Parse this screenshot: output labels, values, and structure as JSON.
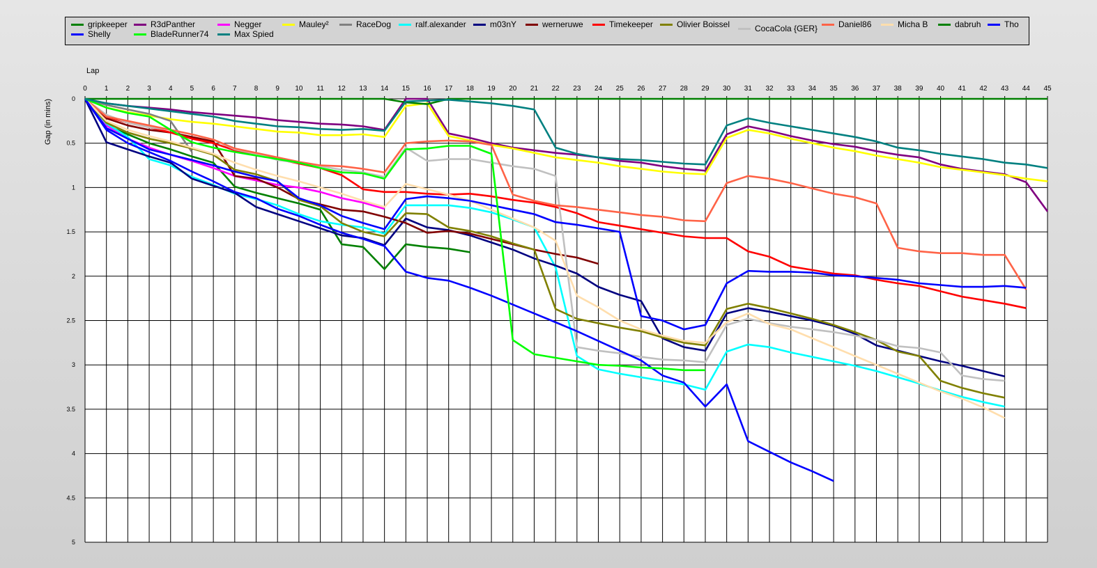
{
  "chart_data": {
    "type": "line",
    "title": "",
    "xlabel": "Lap",
    "ylabel": "Gap (in mins)",
    "xlim": [
      0,
      45
    ],
    "ylim": [
      0,
      5
    ],
    "y_inverted": true,
    "x_axis_position": "top",
    "grid": true,
    "legend_placement": "top",
    "x_ticks": [
      0,
      1,
      2,
      3,
      4,
      5,
      6,
      7,
      8,
      9,
      10,
      11,
      12,
      13,
      14,
      15,
      16,
      17,
      18,
      19,
      20,
      21,
      22,
      23,
      24,
      25,
      26,
      27,
      28,
      29,
      30,
      31,
      32,
      33,
      34,
      35,
      36,
      37,
      38,
      39,
      40,
      41,
      42,
      43,
      44,
      45
    ],
    "y_ticks": [
      "0",
      "0.5",
      "1",
      "1.5",
      "2",
      "2.5",
      "3",
      "3.5",
      "4",
      "4.5",
      "5"
    ],
    "series": [
      {
        "name": "gripkeeper",
        "color": "#008000",
        "values": [
          0,
          0.3,
          0.4,
          0.5,
          0.57,
          0.65,
          0.72,
          0.99,
          1.06,
          1.12,
          1.18,
          1.25,
          1.64,
          1.67,
          1.92,
          1.64,
          1.67,
          1.69,
          1.73
        ]
      },
      {
        "name": "R3dPanther",
        "color": "#800080",
        "values": [
          0,
          0.05,
          0.08,
          0.1,
          0.12,
          0.15,
          0.17,
          0.19,
          0.21,
          0.24,
          0.26,
          0.28,
          0.29,
          0.31,
          0.35,
          0,
          0,
          0.39,
          0.44,
          0.5,
          0.55,
          0.58,
          0.61,
          0.63,
          0.66,
          0.7,
          0.72,
          0.76,
          0.79,
          0.81,
          0.4,
          0.31,
          0.36,
          0.42,
          0.47,
          0.51,
          0.54,
          0.59,
          0.63,
          0.66,
          0.74,
          0.79,
          0.82,
          0.85,
          0.94,
          1.27
        ]
      },
      {
        "name": "Negger",
        "color": "#ff00ff",
        "values": [
          0,
          0.3,
          0.45,
          0.55,
          0.63,
          0.7,
          0.78,
          0.87,
          0.92,
          0.97,
          1.0,
          1.05,
          1.12,
          1.17,
          1.24
        ]
      },
      {
        "name": "Mauley²",
        "color": "#ffff00",
        "values": [
          0,
          0.1,
          0.15,
          0.19,
          0.23,
          0.26,
          0.28,
          0.31,
          0.34,
          0.37,
          0.38,
          0.41,
          0.41,
          0.4,
          0.43,
          0.08,
          0.05,
          0.42,
          0.47,
          0.52,
          0.56,
          0.61,
          0.66,
          0.69,
          0.72,
          0.76,
          0.79,
          0.82,
          0.84,
          0.85,
          0.44,
          0.35,
          0.39,
          0.45,
          0.5,
          0.55,
          0.59,
          0.64,
          0.68,
          0.72,
          0.77,
          0.8,
          0.83,
          0.86,
          0.9,
          0.93
        ]
      },
      {
        "name": "RaceDog",
        "color": "#808080",
        "values": [
          0,
          0.07,
          0.12,
          0.17,
          0.25,
          0.6
        ]
      },
      {
        "name": "ralf.alexander",
        "color": "#00ffff",
        "values": [
          0,
          0.28,
          0.43,
          0.68,
          0.75,
          0.88,
          0.97,
          1.07,
          1.13,
          1.2,
          1.3,
          1.38,
          1.42,
          1.45,
          1.52,
          1.2,
          1.2,
          1.2,
          1.23,
          1.28,
          1.36,
          1.45,
          1.9,
          2.9,
          3.05,
          3.1,
          3.14,
          3.18,
          3.22,
          3.28,
          2.85,
          2.77,
          2.8,
          2.86,
          2.91,
          2.96,
          3.01,
          3.07,
          3.14,
          3.21,
          3.29,
          3.36,
          3.42,
          3.47
        ]
      },
      {
        "name": "m03nY",
        "color": "#000080",
        "values": [
          0,
          0.49,
          0.57,
          0.65,
          0.72,
          0.9,
          0.98,
          1.06,
          1.22,
          1.3,
          1.38,
          1.46,
          1.54,
          1.57,
          1.65,
          1.35,
          1.45,
          1.48,
          1.54,
          1.62,
          1.7,
          1.8,
          1.88,
          1.97,
          2.12,
          2.21,
          2.28,
          2.7,
          2.8,
          2.84,
          2.42,
          2.36,
          2.4,
          2.45,
          2.5,
          2.56,
          2.65,
          2.78,
          2.84,
          2.9,
          2.96,
          3.01,
          3.07,
          3.13
        ]
      },
      {
        "name": "werneruwe",
        "color": "#800000",
        "values": [
          0,
          0.22,
          0.3,
          0.35,
          0.38,
          0.43,
          0.48,
          0.87,
          0.9,
          1.0,
          1.13,
          1.19,
          1.25,
          1.27,
          1.33,
          1.4,
          1.51,
          1.49,
          1.52,
          1.58,
          1.64,
          1.7,
          1.75,
          1.79,
          1.86
        ]
      },
      {
        "name": "Timekeeper",
        "color": "#ff0000",
        "values": [
          0,
          0.2,
          0.27,
          0.32,
          0.38,
          0.45,
          0.5,
          0.58,
          0.63,
          0.68,
          0.73,
          0.78,
          0.86,
          1.02,
          1.05,
          1.05,
          1.07,
          1.08,
          1.07,
          1.1,
          1.14,
          1.17,
          1.22,
          1.29,
          1.39,
          1.43,
          1.47,
          1.51,
          1.55,
          1.57,
          1.57,
          1.72,
          1.78,
          1.89,
          1.93,
          1.97,
          1.99,
          2.04,
          2.08,
          2.11,
          2.17,
          2.23,
          2.27,
          2.31,
          2.36
        ]
      },
      {
        "name": "Olivier Boissel",
        "color": "#808000",
        "values": [
          0,
          0.27,
          0.38,
          0.45,
          0.5,
          0.56,
          0.63,
          0.8,
          0.85,
          0.93,
          1.14,
          1.21,
          1.4,
          1.5,
          1.55,
          1.29,
          1.3,
          1.45,
          1.49,
          1.55,
          1.63,
          1.7,
          2.37,
          2.48,
          2.53,
          2.58,
          2.62,
          2.69,
          2.75,
          2.78,
          2.37,
          2.31,
          2.36,
          2.42,
          2.48,
          2.55,
          2.63,
          2.72,
          2.85,
          2.9,
          3.18,
          3.26,
          3.32,
          3.37
        ]
      },
      {
        "name": "CocaCola {GER}",
        "color": "#c0c0c0",
        "values": [
          0,
          0.18,
          0.27,
          0.32,
          0.35,
          0.4,
          0.46,
          0.57,
          0.62,
          0.69,
          0.72,
          0.76,
          0.8,
          0.83,
          0.88,
          0.55,
          0.7,
          0.68,
          0.68,
          0.72,
          0.76,
          0.79,
          0.87,
          2.8,
          2.84,
          2.87,
          2.91,
          2.94,
          2.95,
          2.97,
          2.55,
          2.48,
          2.53,
          2.57,
          2.6,
          2.63,
          2.67,
          2.72,
          2.79,
          2.81,
          2.86,
          3.12,
          3.16,
          3.18
        ]
      },
      {
        "name": "Daniel86",
        "color": "#ff6347",
        "values": [
          0,
          0.2,
          0.25,
          0.3,
          0.35,
          0.4,
          0.46,
          0.56,
          0.61,
          0.66,
          0.71,
          0.75,
          0.76,
          0.79,
          0.83,
          0.5,
          0.48,
          0.47,
          0.48,
          0.52,
          1.08,
          1.15,
          1.2,
          1.22,
          1.25,
          1.28,
          1.31,
          1.33,
          1.37,
          1.38,
          0.95,
          0.87,
          0.9,
          0.95,
          1.01,
          1.07,
          1.11,
          1.18,
          1.68,
          1.72,
          1.74,
          1.74,
          1.76,
          1.76,
          2.15
        ]
      },
      {
        "name": "Micha B",
        "color": "#ffdead",
        "values": [
          0,
          0.25,
          0.35,
          0.42,
          0.48,
          0.55,
          0.62,
          0.72,
          0.8,
          0.87,
          0.93,
          1.0,
          1.07,
          1.15,
          1.22,
          0.96,
          1.02,
          1.08,
          1.15,
          1.25,
          1.35,
          1.45,
          1.6,
          2.22,
          2.35,
          2.5,
          2.6,
          2.67,
          2.73,
          2.75,
          2.52,
          2.42,
          2.54,
          2.6,
          2.7,
          2.8,
          2.9,
          3.0,
          3.1,
          3.2,
          3.3,
          3.38,
          3.48,
          3.6
        ]
      },
      {
        "name": "dabruh",
        "color": "#008000",
        "values": [
          0,
          0,
          0,
          0,
          0,
          0,
          0,
          0,
          0,
          0,
          0,
          0,
          0,
          0,
          0,
          0.04,
          0.06,
          0,
          0,
          0,
          0,
          0,
          0,
          0,
          0,
          0,
          0,
          0,
          0,
          0,
          0,
          0,
          0,
          0,
          0,
          0,
          0,
          0,
          0,
          0,
          0,
          0,
          0,
          0,
          0,
          0
        ]
      },
      {
        "name": "Tho",
        "color": "#0000ff",
        "values": [
          0,
          0.33,
          0.45,
          0.57,
          0.63,
          0.69,
          0.75,
          0.82,
          0.88,
          0.93,
          1.12,
          1.2,
          1.32,
          1.4,
          1.47,
          1.13,
          1.1,
          1.12,
          1.15,
          1.2,
          1.25,
          1.3,
          1.39,
          1.42,
          1.46,
          1.5,
          2.45,
          2.5,
          2.6,
          2.55,
          2.08,
          1.94,
          1.95,
          1.95,
          1.96,
          1.99,
          2.0,
          2.02,
          2.04,
          2.08,
          2.1,
          2.12,
          2.12,
          2.11,
          2.13
        ]
      },
      {
        "name": "Shelly",
        "color": "#0000ff",
        "values": [
          0,
          0.35,
          0.5,
          0.6,
          0.7,
          0.82,
          0.93,
          1.05,
          1.12,
          1.24,
          1.32,
          1.42,
          1.51,
          1.58,
          1.66,
          1.95,
          2.02,
          2.05,
          2.13,
          2.22,
          2.32,
          2.42,
          2.52,
          2.62,
          2.73,
          2.84,
          2.95,
          3.12,
          3.2,
          3.47,
          3.22,
          3.86,
          3.98,
          4.1,
          4.2,
          4.31
        ]
      },
      {
        "name": "BladeRunner74",
        "color": "#00ff00",
        "values": [
          0,
          0.1,
          0.16,
          0.2,
          0.35,
          0.49,
          0.55,
          0.6,
          0.64,
          0.68,
          0.72,
          0.78,
          0.83,
          0.84,
          0.9,
          0.57,
          0.56,
          0.53,
          0.53,
          0.62,
          2.72,
          2.88,
          2.92,
          2.96,
          3.0,
          3.01,
          3.03,
          3.04,
          3.06,
          3.06
        ]
      },
      {
        "name": "Max Spied",
        "color": "#008080",
        "values": [
          0,
          0.05,
          0.08,
          0.11,
          0.14,
          0.17,
          0.2,
          0.25,
          0.28,
          0.31,
          0.32,
          0.34,
          0.35,
          0.34,
          0.36,
          0.03,
          0.02,
          0.01,
          0.03,
          0.05,
          0.08,
          0.12,
          0.55,
          0.62,
          0.66,
          0.68,
          0.69,
          0.71,
          0.73,
          0.74,
          0.3,
          0.22,
          0.27,
          0.31,
          0.35,
          0.39,
          0.43,
          0.48,
          0.55,
          0.58,
          0.62,
          0.65,
          0.68,
          0.72,
          0.74,
          0.78
        ]
      }
    ]
  }
}
